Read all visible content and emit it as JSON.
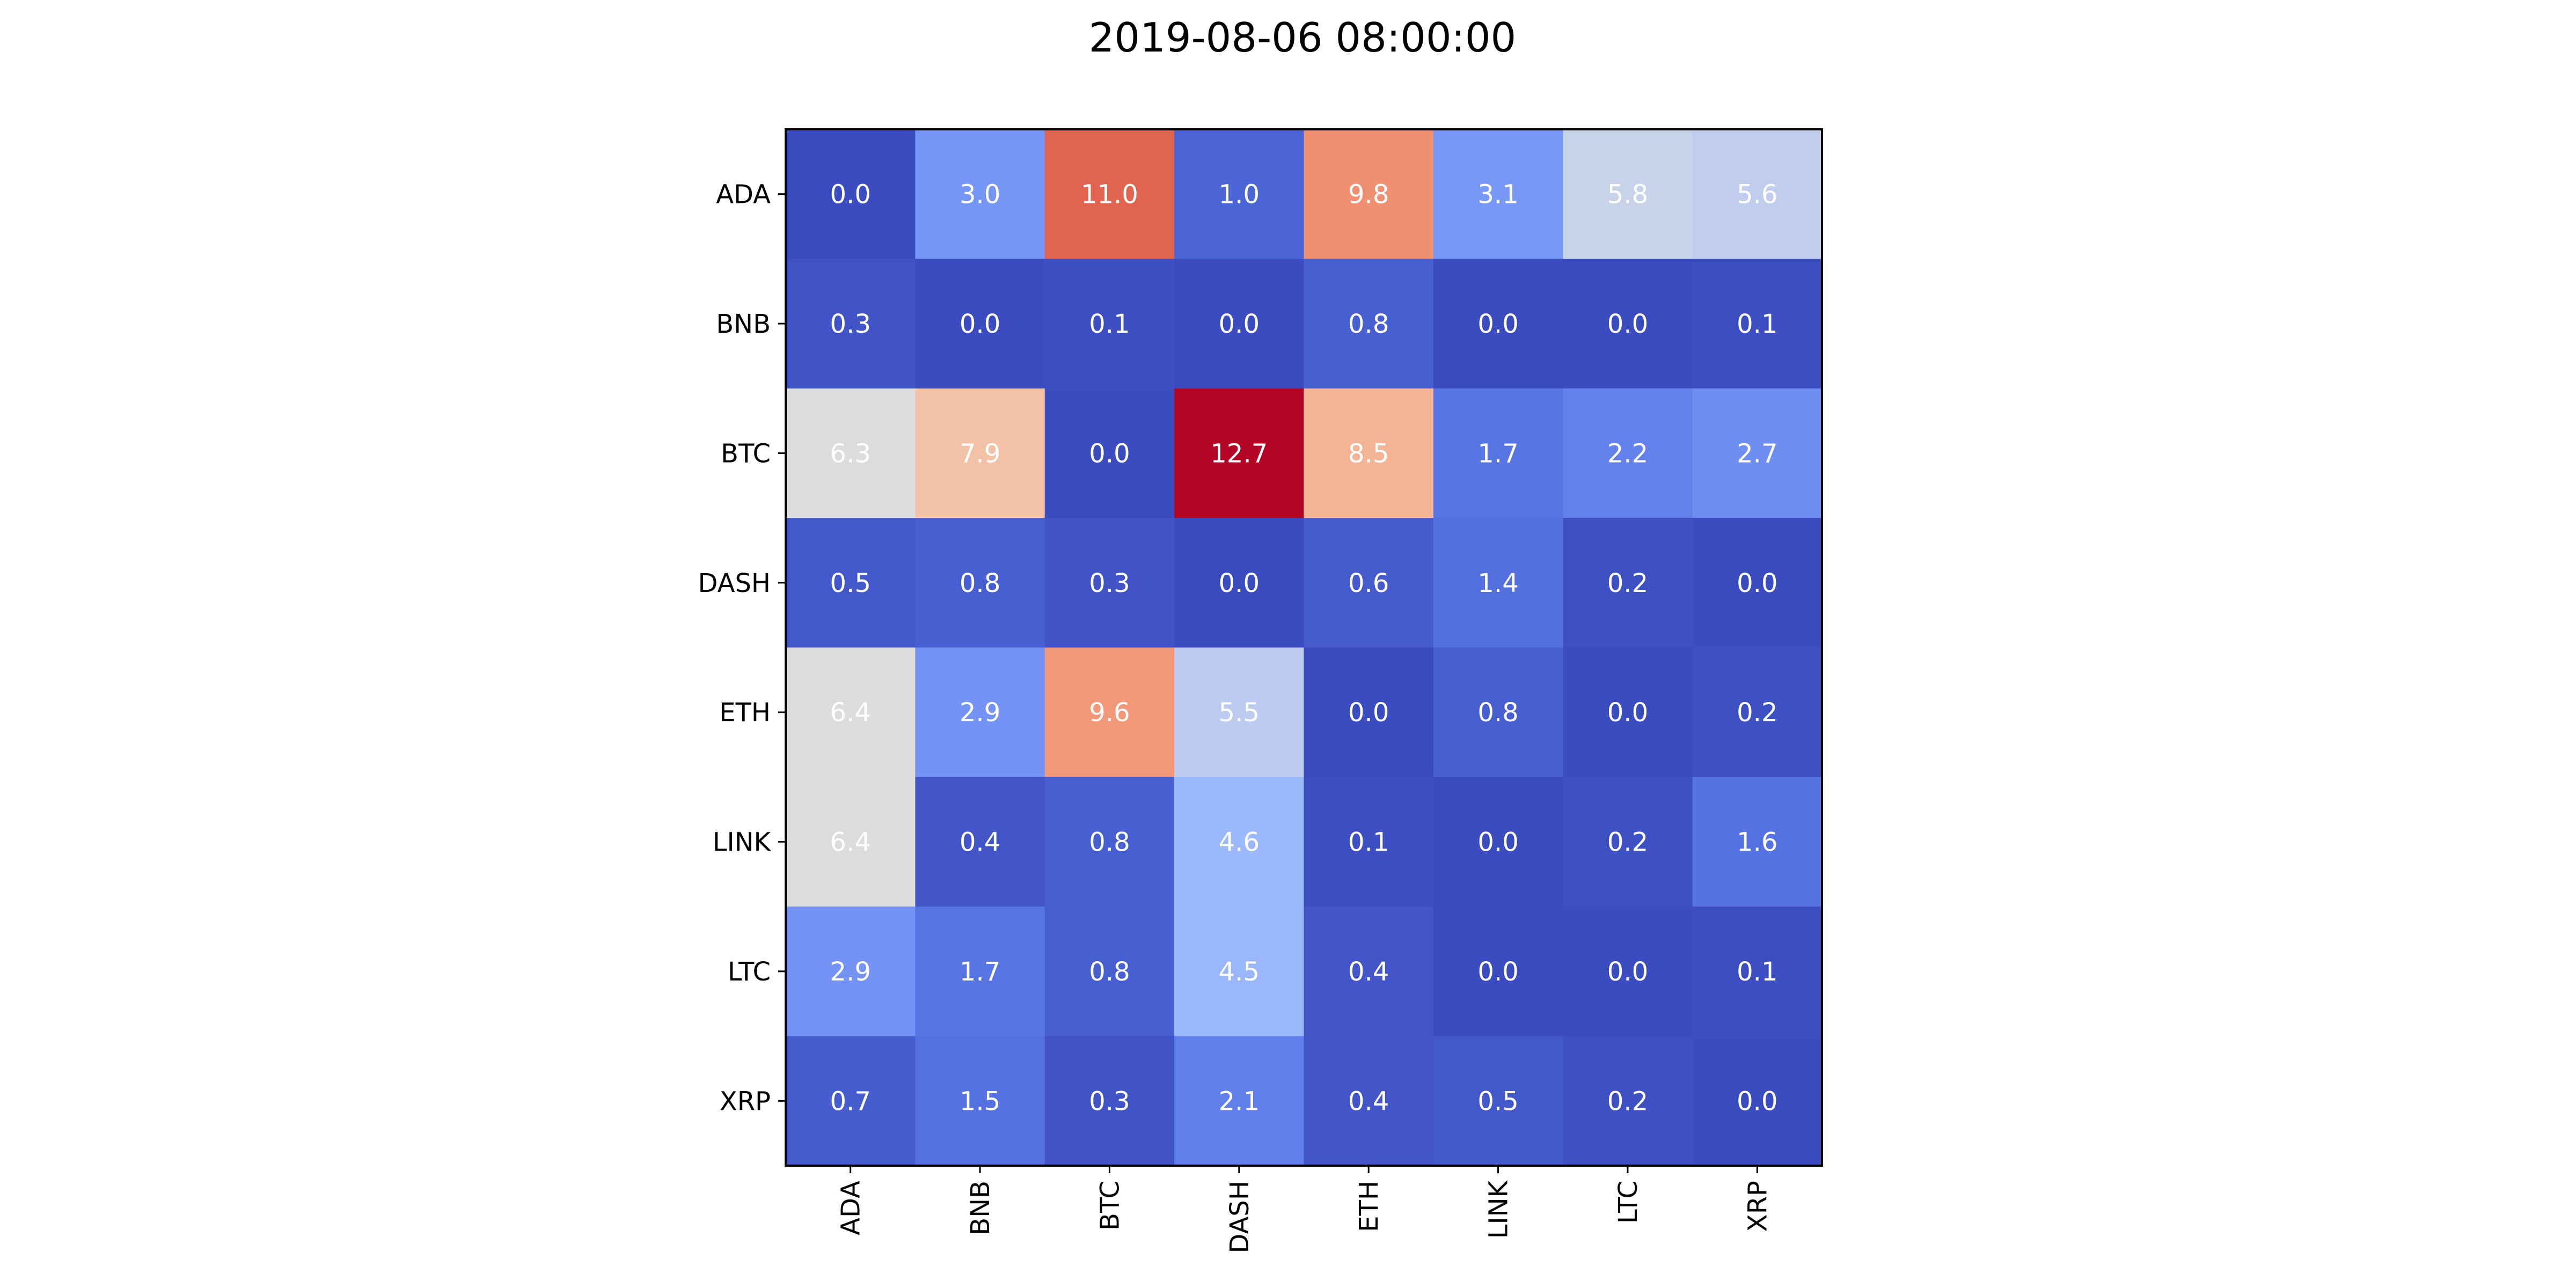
{
  "chart_data": {
    "type": "heatmap",
    "title": "2019-08-06 08:00:00",
    "xlabel": "",
    "ylabel": "",
    "x_categories": [
      "ADA",
      "BNB",
      "BTC",
      "DASH",
      "ETH",
      "LINK",
      "LTC",
      "XRP"
    ],
    "y_categories": [
      "ADA",
      "BNB",
      "BTC",
      "DASH",
      "ETH",
      "LINK",
      "LTC",
      "XRP"
    ],
    "values": [
      [
        0.0,
        3.0,
        11.0,
        1.0,
        9.8,
        3.1,
        5.8,
        5.6
      ],
      [
        0.3,
        0.0,
        0.1,
        0.0,
        0.8,
        0.0,
        0.0,
        0.1
      ],
      [
        6.3,
        7.9,
        0.0,
        12.7,
        8.5,
        1.7,
        2.2,
        2.7
      ],
      [
        0.5,
        0.8,
        0.3,
        0.0,
        0.6,
        1.4,
        0.2,
        0.0
      ],
      [
        6.4,
        2.9,
        9.6,
        5.5,
        0.0,
        0.8,
        0.0,
        0.2
      ],
      [
        6.4,
        0.4,
        0.8,
        4.6,
        0.1,
        0.0,
        0.2,
        1.6
      ],
      [
        2.9,
        1.7,
        0.8,
        4.5,
        0.4,
        0.0,
        0.0,
        0.1
      ],
      [
        0.7,
        1.5,
        0.3,
        2.1,
        0.4,
        0.5,
        0.2,
        0.0
      ]
    ],
    "value_range": [
      0.0,
      12.7
    ],
    "colormap": "coolwarm",
    "annotation_color": "#ffffff",
    "grid": false,
    "legend": "none"
  }
}
